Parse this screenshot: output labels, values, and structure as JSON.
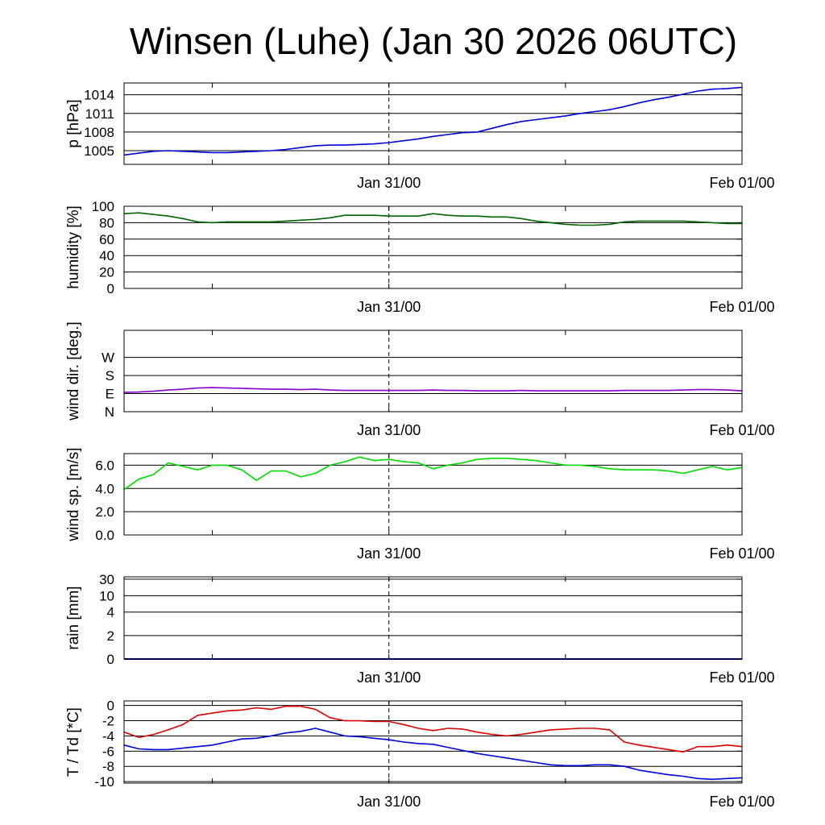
{
  "title": "Winsen (Luhe) (Jan 30 2026 06UTC)",
  "time_axis": {
    "start_hours": 0,
    "end_hours": 42,
    "tick_labels": [
      {
        "label": "Jan 31/00",
        "hours": 18
      },
      {
        "label": "Feb 01/00",
        "hours": 42
      }
    ],
    "minor_tick_hours": [
      6,
      18,
      30
    ],
    "dashed_marker_hours": 18
  },
  "chart_data": [
    {
      "type": "line",
      "id": "pressure",
      "ylabel": "p [hPa]",
      "ylim": [
        1002.8,
        1015.9
      ],
      "yticks": [
        {
          "v": 1005,
          "label": "1005"
        },
        {
          "v": 1008,
          "label": "1008"
        },
        {
          "v": 1011,
          "label": "1011"
        },
        {
          "v": 1014,
          "label": "1014"
        }
      ],
      "series": [
        {
          "name": "pressure",
          "color": "#0000dd",
          "x": [
            0,
            1,
            2,
            3,
            4,
            5,
            6,
            7,
            8,
            9,
            10,
            11,
            12,
            13,
            14,
            15,
            16,
            17,
            18,
            19,
            20,
            21,
            22,
            23,
            24,
            25,
            26,
            27,
            28,
            29,
            30,
            31,
            32,
            33,
            34,
            35,
            36,
            37,
            38,
            39,
            40,
            41,
            42
          ],
          "y": [
            1004.3,
            1004.6,
            1004.9,
            1005.0,
            1004.9,
            1004.8,
            1004.7,
            1004.7,
            1004.8,
            1004.9,
            1005.0,
            1005.2,
            1005.5,
            1005.8,
            1005.9,
            1005.9,
            1006.0,
            1006.1,
            1006.3,
            1006.6,
            1006.9,
            1007.3,
            1007.6,
            1007.9,
            1008.0,
            1008.6,
            1009.2,
            1009.7,
            1010.0,
            1010.3,
            1010.6,
            1011.0,
            1011.3,
            1011.6,
            1012.1,
            1012.7,
            1013.2,
            1013.6,
            1014.1,
            1014.6,
            1014.9,
            1015.0,
            1015.2
          ]
        }
      ]
    },
    {
      "type": "line",
      "id": "humidity",
      "ylabel": "humidity [%]",
      "ylim": [
        0,
        100
      ],
      "yticks": [
        {
          "v": 0,
          "label": "0"
        },
        {
          "v": 20,
          "label": "20"
        },
        {
          "v": 40,
          "label": "40"
        },
        {
          "v": 60,
          "label": "60"
        },
        {
          "v": 80,
          "label": "80"
        },
        {
          "v": 100,
          "label": "100"
        }
      ],
      "series": [
        {
          "name": "humidity",
          "color": "#006400",
          "x": [
            0,
            1,
            2,
            3,
            4,
            5,
            6,
            7,
            8,
            9,
            10,
            11,
            12,
            13,
            14,
            15,
            16,
            17,
            18,
            19,
            20,
            21,
            22,
            23,
            24,
            25,
            26,
            27,
            28,
            29,
            30,
            31,
            32,
            33,
            34,
            35,
            36,
            37,
            38,
            39,
            40,
            41,
            42
          ],
          "y": [
            91,
            92,
            90,
            88,
            85,
            81,
            80,
            81,
            81,
            81,
            81,
            82,
            83,
            84,
            86,
            89,
            89,
            89,
            88,
            88,
            88,
            91,
            89,
            88,
            88,
            87,
            87,
            85,
            82,
            80,
            78,
            77,
            77,
            78,
            81,
            82,
            82,
            82,
            82,
            81,
            80,
            79,
            79
          ]
        }
      ]
    },
    {
      "type": "line",
      "id": "wind_direction",
      "ylabel": "wind dir. [deg.]",
      "ylim": [
        0,
        405
      ],
      "yticks": [
        {
          "v": 0,
          "label": "N"
        },
        {
          "v": 90,
          "label": "E"
        },
        {
          "v": 180,
          "label": "S"
        },
        {
          "v": 270,
          "label": "W"
        }
      ],
      "series": [
        {
          "name": "wind direction",
          "color": "#8800cc",
          "x": [
            0,
            1,
            2,
            3,
            4,
            5,
            6,
            7,
            8,
            9,
            10,
            11,
            12,
            13,
            14,
            15,
            16,
            17,
            18,
            19,
            20,
            21,
            22,
            23,
            24,
            25,
            26,
            27,
            28,
            29,
            30,
            31,
            32,
            33,
            34,
            35,
            36,
            37,
            38,
            39,
            40,
            41,
            42
          ],
          "y": [
            96,
            98,
            102,
            108,
            112,
            118,
            120,
            118,
            116,
            114,
            112,
            112,
            110,
            112,
            108,
            106,
            106,
            106,
            106,
            106,
            106,
            108,
            106,
            106,
            104,
            104,
            104,
            106,
            104,
            104,
            104,
            104,
            104,
            104,
            106,
            106,
            106,
            106,
            108,
            110,
            110,
            108,
            104
          ]
        }
      ]
    },
    {
      "type": "line",
      "id": "wind_speed",
      "ylabel": "wind sp. [m/s]",
      "ylim": [
        0,
        7.0
      ],
      "yticks": [
        {
          "v": 0,
          "label": "0.0"
        },
        {
          "v": 2,
          "label": "2.0"
        },
        {
          "v": 4,
          "label": "4.0"
        },
        {
          "v": 6,
          "label": "6.0"
        }
      ],
      "series": [
        {
          "name": "wind speed",
          "color": "#00dd00",
          "x": [
            0,
            1,
            2,
            3,
            4,
            5,
            6,
            7,
            8,
            9,
            10,
            11,
            12,
            13,
            14,
            15,
            16,
            17,
            18,
            19,
            20,
            21,
            22,
            23,
            24,
            25,
            26,
            27,
            28,
            29,
            30,
            31,
            32,
            33,
            34,
            35,
            36,
            37,
            38,
            39,
            40,
            41,
            42
          ],
          "y": [
            3.9,
            4.8,
            5.2,
            6.2,
            5.9,
            5.6,
            6.0,
            6.0,
            5.6,
            4.7,
            5.5,
            5.5,
            5.0,
            5.3,
            6.0,
            6.3,
            6.7,
            6.4,
            6.5,
            6.3,
            6.2,
            5.7,
            6.0,
            6.2,
            6.5,
            6.6,
            6.6,
            6.5,
            6.4,
            6.2,
            6.0,
            6.0,
            5.9,
            5.7,
            5.6,
            5.6,
            5.6,
            5.5,
            5.3,
            5.6,
            5.9,
            5.6,
            5.8
          ]
        }
      ]
    },
    {
      "type": "line",
      "id": "rain",
      "ylabel": "rain [mm]",
      "y_scale": "nonlinear",
      "yticks": [
        {
          "v": 0,
          "label": "0"
        },
        {
          "v": 2,
          "label": "2"
        },
        {
          "v": 4,
          "label": "4"
        },
        {
          "v": 10,
          "label": "10"
        },
        {
          "v": 30,
          "label": "30"
        }
      ],
      "series": [
        {
          "name": "rain",
          "color": "#0000aa",
          "x": [
            0,
            42
          ],
          "y": [
            0,
            0
          ]
        }
      ]
    },
    {
      "type": "line",
      "id": "temperature",
      "ylabel": "T / Td [*C]",
      "ylim": [
        -10.2,
        0.6
      ],
      "yticks": [
        {
          "v": 0,
          "label": "0"
        },
        {
          "v": -2,
          "label": "-2"
        },
        {
          "v": -4,
          "label": "-4"
        },
        {
          "v": -6,
          "label": "-6"
        },
        {
          "v": -8,
          "label": "-8"
        },
        {
          "v": -10,
          "label": "-10"
        }
      ],
      "series": [
        {
          "name": "T",
          "color": "#dd0000",
          "x": [
            0,
            1,
            2,
            3,
            4,
            5,
            6,
            7,
            8,
            9,
            10,
            11,
            12,
            13,
            14,
            15,
            16,
            17,
            18,
            19,
            20,
            21,
            22,
            23,
            24,
            25,
            26,
            27,
            28,
            29,
            30,
            31,
            32,
            33,
            34,
            35,
            36,
            37,
            38,
            39,
            40,
            41,
            42
          ],
          "y": [
            -3.5,
            -4.2,
            -3.8,
            -3.2,
            -2.5,
            -1.3,
            -1.0,
            -0.7,
            -0.6,
            -0.3,
            -0.5,
            -0.1,
            -0.1,
            -0.5,
            -1.6,
            -2.0,
            -2.0,
            -2.1,
            -2.1,
            -2.5,
            -3.0,
            -3.3,
            -3.0,
            -3.1,
            -3.5,
            -3.8,
            -4.0,
            -3.8,
            -3.5,
            -3.2,
            -3.1,
            -3.0,
            -3.0,
            -3.2,
            -4.8,
            -5.2,
            -5.5,
            -5.8,
            -6.1,
            -5.4,
            -5.4,
            -5.2,
            -5.4
          ]
        },
        {
          "name": "Td",
          "color": "#0000dd",
          "x": [
            0,
            1,
            2,
            3,
            4,
            5,
            6,
            7,
            8,
            9,
            10,
            11,
            12,
            13,
            14,
            15,
            16,
            17,
            18,
            19,
            20,
            21,
            22,
            23,
            24,
            25,
            26,
            27,
            28,
            29,
            30,
            31,
            32,
            33,
            34,
            35,
            36,
            37,
            38,
            39,
            40,
            41,
            42
          ],
          "y": [
            -5.2,
            -5.7,
            -5.8,
            -5.8,
            -5.6,
            -5.4,
            -5.2,
            -4.8,
            -4.4,
            -4.3,
            -4.0,
            -3.6,
            -3.4,
            -3.0,
            -3.5,
            -4.0,
            -4.1,
            -4.3,
            -4.5,
            -4.8,
            -5.0,
            -5.1,
            -5.5,
            -5.9,
            -6.3,
            -6.6,
            -6.9,
            -7.2,
            -7.5,
            -7.8,
            -7.9,
            -7.9,
            -7.8,
            -7.8,
            -8.0,
            -8.5,
            -8.8,
            -9.1,
            -9.3,
            -9.6,
            -9.7,
            -9.6,
            -9.5
          ]
        }
      ]
    }
  ]
}
